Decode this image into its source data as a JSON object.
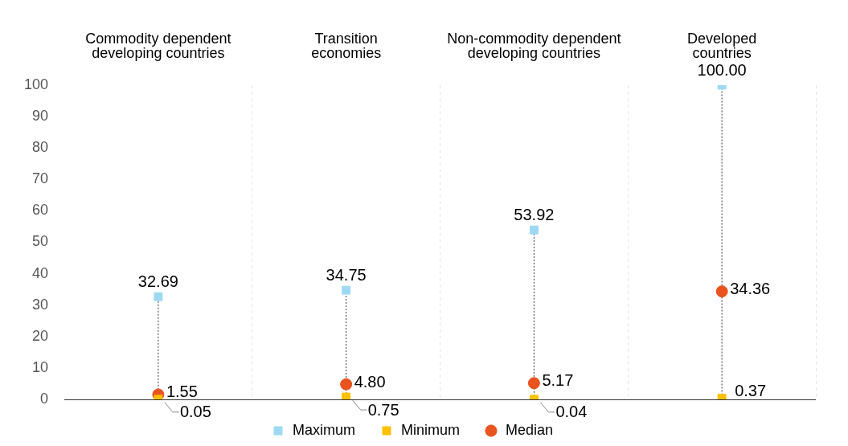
{
  "chart_data": {
    "type": "scatter",
    "categories": [
      "Commodity dependent\ndeveloping countries",
      "Transition\neconomies",
      "Non-commodity dependent\ndeveloping countries",
      "Developed\ncountries"
    ],
    "series": [
      {
        "name": "Median",
        "color": "#e8531f",
        "marker": "circle",
        "values": [
          1.55,
          4.8,
          5.17,
          34.36
        ],
        "value_labels": [
          "1.55",
          "4.80",
          "5.17",
          "34.36"
        ]
      },
      {
        "name": "Maximum",
        "color": "#9dd9f3",
        "marker": "square",
        "values": [
          32.69,
          34.75,
          53.92,
          100.0
        ],
        "value_labels": [
          "32.69",
          "34.75",
          "53.92",
          "100.00"
        ]
      },
      {
        "name": "Minimum",
        "color": "#ffc000",
        "marker": "square",
        "values": [
          0.05,
          0.75,
          0.04,
          0.37
        ],
        "value_labels": [
          "0.05",
          "0.75",
          "0.04",
          "0.37"
        ]
      }
    ],
    "ylim": [
      0,
      100
    ],
    "yticks": [
      0,
      10,
      20,
      30,
      40,
      50,
      60,
      70,
      80,
      90,
      100
    ],
    "grid": "x",
    "legend": "bottom"
  }
}
